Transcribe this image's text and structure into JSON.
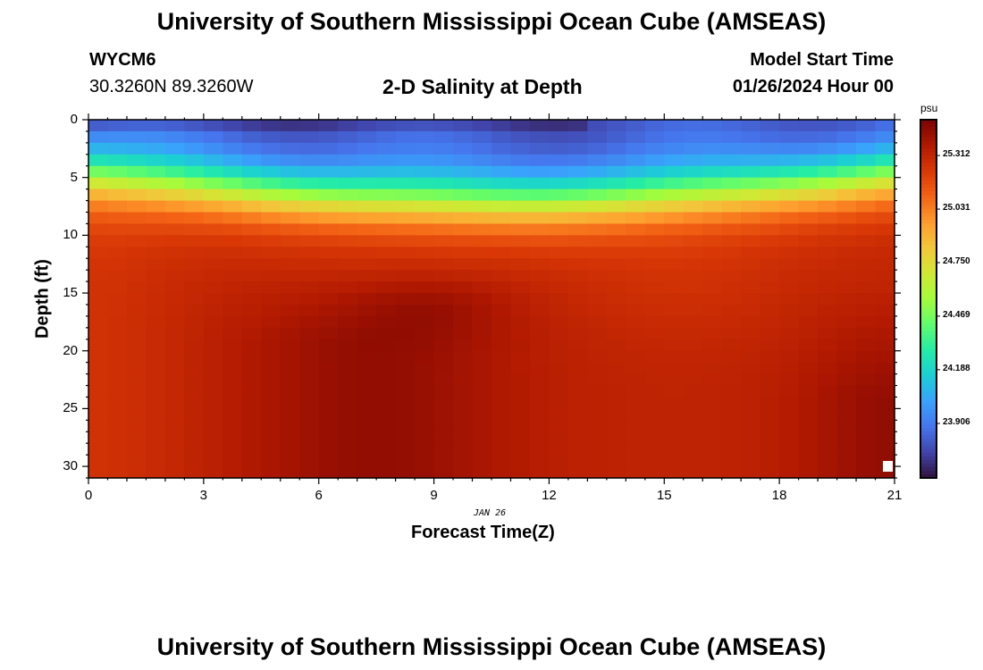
{
  "header": {
    "title": "University of Southern Mississippi Ocean Cube (AMSEAS)",
    "station_id": "WYCM6",
    "coordinates": "30.3260N  89.3260W",
    "model_start_label": "Model Start Time",
    "model_start_value": "01/26/2024 Hour 00",
    "footer_title": "University of Southern Mississippi Ocean Cube (AMSEAS)"
  },
  "chart_data": {
    "type": "heatmap",
    "title": "2-D Salinity at Depth",
    "xlabel": "Forecast Time(Z)",
    "ylabel": "Depth (ft)",
    "date_note": "JAN 26",
    "xlim": [
      0,
      21
    ],
    "ylim": [
      0,
      31
    ],
    "x_ticks": [
      "0",
      "3",
      "6",
      "9",
      "12",
      "15",
      "18",
      "21"
    ],
    "y_ticks": [
      "0",
      "5",
      "10",
      "15",
      "20",
      "25",
      "30"
    ],
    "colorbar": {
      "unit": "psu",
      "range": [
        23.62,
        25.5
      ],
      "labels": [
        "25.312",
        "25.031",
        "24.750",
        "24.469",
        "24.188",
        "23.906"
      ]
    },
    "colors": {
      "stops": [
        "#30123b",
        "#4145ab",
        "#4675ed",
        "#39a2fc",
        "#1bcfd4",
        "#24eca6",
        "#61fc6c",
        "#a4fc3b",
        "#d1e834",
        "#f3c63a",
        "#fe9b2d",
        "#f36315",
        "#d93806",
        "#b11901",
        "#7a0403"
      ]
    },
    "description": "Salinity field over forecast hours 0-21 and depth 0-31 ft; fresher water (~23.7 psu) at surface, saltier (~25.4 psu) below ~10 ft, with a halocline that deepens mid-period"
  }
}
